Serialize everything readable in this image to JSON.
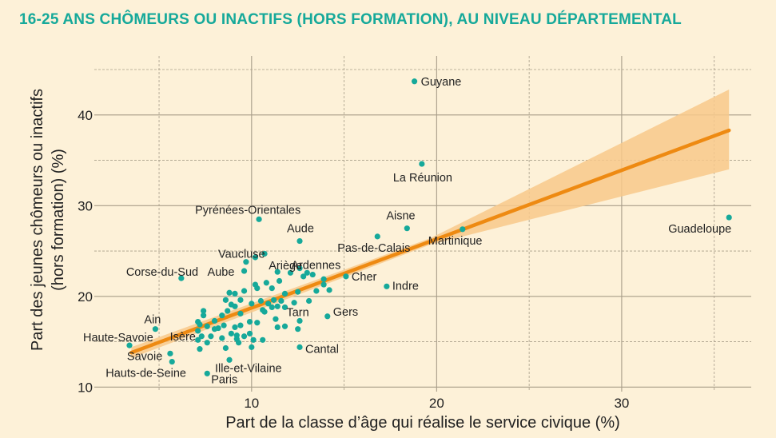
{
  "colors": {
    "background": "#fdf1d8",
    "title": "#16a99a",
    "points": "#16a99a",
    "trend": "#ee8a12",
    "band": "#f8c98b",
    "grid": "#a89d89"
  },
  "chart_data": {
    "type": "scatter",
    "title": "16-25 ANS CHÔMEURS OU INACTIFS (HORS FORMATION), AU NIVEAU DÉPARTEMENTAL",
    "xlabel": "Part de la classe d’âge qui réalise le service civique (%)",
    "ylabel_lines": [
      "Part des jeunes chômeurs ou inactifs",
      "(hors formation) (%)"
    ],
    "xlim": [
      1.5,
      37
    ],
    "ylim": [
      9.5,
      46.5
    ],
    "x_ticks": [
      10,
      20,
      30
    ],
    "y_ticks": [
      10,
      20,
      30,
      40
    ],
    "grid": true,
    "trend": {
      "x": [
        3.5,
        35.8
      ],
      "y": [
        13.8,
        38.3
      ],
      "ci_lower": [
        13.2,
        34
      ],
      "ci_upper": [
        14.4,
        42.8
      ]
    },
    "labeled_points": [
      {
        "name": "Guyane",
        "x": 18.8,
        "y": 43.7
      },
      {
        "name": "La Réunion",
        "x": 19.2,
        "y": 34.6
      },
      {
        "name": "Guadeloupe",
        "x": 35.8,
        "y": 28.7
      },
      {
        "name": "Pyrénées-Orientales",
        "x": 10.4,
        "y": 28.5
      },
      {
        "name": "Aisne",
        "x": 18.4,
        "y": 27.5
      },
      {
        "name": "Martinique",
        "x": 21.4,
        "y": 27.4
      },
      {
        "name": "Pas-de-Calais",
        "x": 16.8,
        "y": 26.6
      },
      {
        "name": "Aude",
        "x": 12.6,
        "y": 26.1
      },
      {
        "name": "Vaucluse",
        "x": 10.7,
        "y": 24.7
      },
      {
        "name": "Ardennes",
        "x": 13,
        "y": 22.6
      },
      {
        "name": "Corse-du-Sud",
        "x": 6.2,
        "y": 22
      },
      {
        "name": "Aube",
        "x": 9.6,
        "y": 22.8
      },
      {
        "name": "Ariège",
        "x": 11.4,
        "y": 22.7
      },
      {
        "name": "Cher",
        "x": 15.1,
        "y": 22.2
      },
      {
        "name": "Indre",
        "x": 17.3,
        "y": 21.1
      },
      {
        "name": "Tarn",
        "x": 11.8,
        "y": 18.8
      },
      {
        "name": "Gers",
        "x": 14.1,
        "y": 17.8
      },
      {
        "name": "Ain",
        "x": 4.8,
        "y": 16.4
      },
      {
        "name": "Isère",
        "x": 7.1,
        "y": 16.2
      },
      {
        "name": "Haute-Savoie",
        "x": 3.4,
        "y": 14.6
      },
      {
        "name": "Savoie",
        "x": 5.6,
        "y": 13.7
      },
      {
        "name": "Cantal",
        "x": 12.6,
        "y": 14.4
      },
      {
        "name": "Hauts-de-Seine",
        "x": 5.7,
        "y": 12.8
      },
      {
        "name": "Ille-et-Vilaine",
        "x": 8.8,
        "y": 13
      },
      {
        "name": "Paris",
        "x": 7.6,
        "y": 11.5
      }
    ],
    "other_points": [
      [
        7.4,
        18.4
      ],
      [
        7.4,
        17.9
      ],
      [
        7.1,
        17.2
      ],
      [
        7.2,
        16.9
      ],
      [
        7.6,
        16.7
      ],
      [
        7.3,
        15.6
      ],
      [
        7.1,
        15.2
      ],
      [
        7.6,
        14.9
      ],
      [
        7.2,
        14.2
      ],
      [
        8.2,
        16.5
      ],
      [
        8,
        17.3
      ],
      [
        8.4,
        17.9
      ],
      [
        8.7,
        18.4
      ],
      [
        8.9,
        19.1
      ],
      [
        8.6,
        19.6
      ],
      [
        8.8,
        20.4
      ],
      [
        9.1,
        20.3
      ],
      [
        9.4,
        19.6
      ],
      [
        9.1,
        18.9
      ],
      [
        9.4,
        18.1
      ],
      [
        8.4,
        15.4
      ],
      [
        8.9,
        15.9
      ],
      [
        9.1,
        16.6
      ],
      [
        9.2,
        15.3
      ],
      [
        9.6,
        15.6
      ],
      [
        8.6,
        14.3
      ],
      [
        9.3,
        14.9
      ],
      [
        10,
        14.4
      ],
      [
        10.1,
        15.2
      ],
      [
        9.9,
        15.9
      ],
      [
        10.6,
        15.2
      ],
      [
        10.3,
        17.1
      ],
      [
        10.7,
        18.3
      ],
      [
        11.1,
        18.8
      ],
      [
        10.9,
        19.2
      ],
      [
        11.2,
        19.6
      ],
      [
        11.6,
        19.5
      ],
      [
        11.4,
        18.9
      ],
      [
        11.8,
        20.3
      ],
      [
        11.5,
        21.7
      ],
      [
        11.1,
        20.9
      ],
      [
        10.8,
        21.5
      ],
      [
        11.4,
        16.6
      ],
      [
        11.8,
        16.7
      ],
      [
        12.6,
        17.3
      ],
      [
        12.3,
        19.3
      ],
      [
        12.5,
        20.5
      ],
      [
        12.8,
        22.2
      ],
      [
        13.3,
        22.4
      ],
      [
        13.9,
        21.3
      ],
      [
        14.2,
        20.7
      ],
      [
        13.5,
        20.6
      ],
      [
        13.9,
        21.9
      ],
      [
        12.1,
        22.6
      ],
      [
        10.5,
        19.5
      ],
      [
        10,
        19.2
      ],
      [
        9.6,
        20.6
      ],
      [
        10.2,
        21.3
      ],
      [
        10.3,
        20.9
      ],
      [
        9.7,
        23.8
      ],
      [
        10.2,
        24.3
      ],
      [
        12.6,
        23.1
      ],
      [
        13.1,
        19.5
      ],
      [
        12.5,
        16.4
      ],
      [
        11.3,
        17.5
      ],
      [
        10.6,
        18.5
      ],
      [
        9.9,
        17.2
      ],
      [
        9.4,
        16.8
      ],
      [
        8.5,
        16.8
      ],
      [
        8,
        16.4
      ],
      [
        7.8,
        15.6
      ],
      [
        9.2,
        15.7
      ]
    ]
  }
}
